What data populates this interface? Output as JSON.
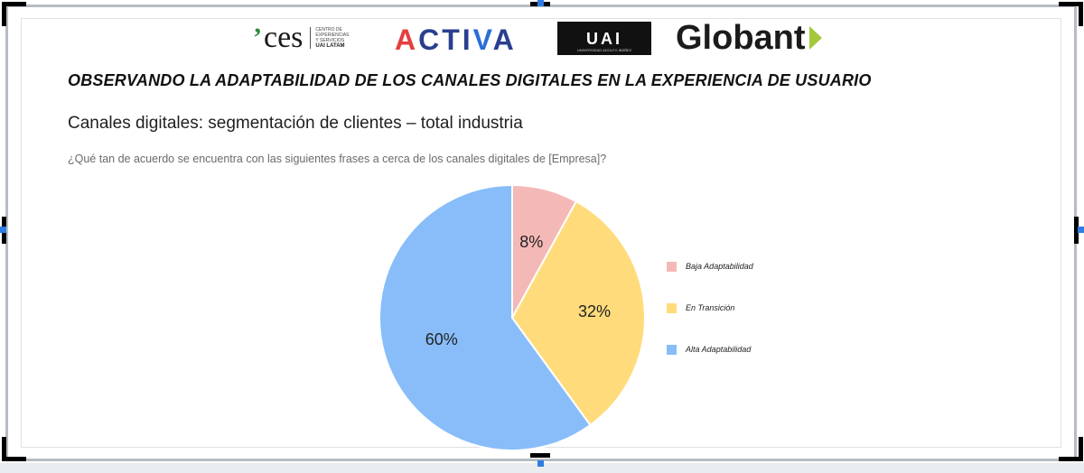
{
  "logos": {
    "ces": {
      "tick": "’",
      "text": "ces",
      "sub_lines": [
        "CENTRO DE",
        "EXPERIENCIAS",
        "Y SERVICIOS"
      ],
      "sub_strong": "UAI LATAM"
    },
    "activa": {
      "text": "ACTIVA",
      "colors": {
        "a": "#e43f3f",
        "accent": "#2a6fd6",
        "main": "#2a3f8f"
      }
    },
    "uai": {
      "text": "UAI",
      "sub": "UNIVERSIDAD ADOLFO IBÁÑEZ"
    },
    "globant": {
      "text": "Globant",
      "arrow_color": "#a3c93a"
    }
  },
  "page": {
    "title": "OBSERVANDO LA ADAPTABILIDAD DE LOS CANALES DIGITALES EN LA EXPERIENCIA DE USUARIO"
  },
  "chart_data": {
    "type": "pie",
    "title": "Canales digitales: segmentación de clientes – total industria",
    "subtitle": "¿Qué tan de acuerdo se encuentra con las siguientes frases a cerca de los canales digitales de [Empresa]?",
    "legend_position": "right",
    "start_angle_deg": 0,
    "direction": "clockwise",
    "slices": [
      {
        "label": "Baja Adaptabilidad",
        "value": 8,
        "display": "8%",
        "color": "#f4b9b6"
      },
      {
        "label": "En Transición",
        "value": 32,
        "display": "32%",
        "color": "#ffdb7b"
      },
      {
        "label": "Alta Adaptabilidad",
        "value": 60,
        "display": "60%",
        "color": "#88bdfa"
      }
    ]
  }
}
